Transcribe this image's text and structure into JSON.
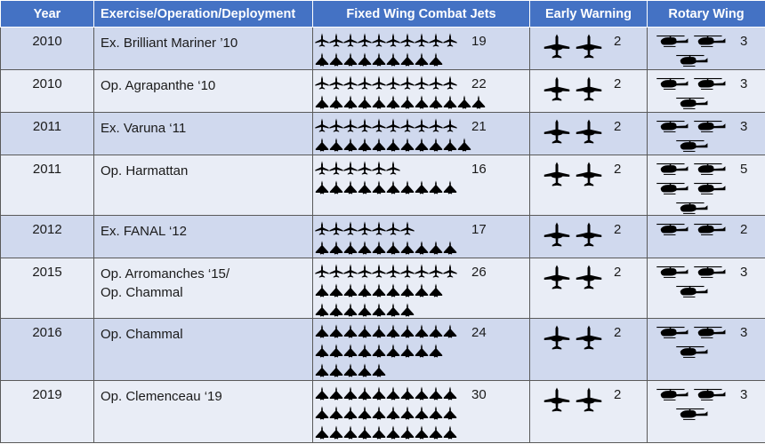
{
  "headers": {
    "year": "Year",
    "exercise": "Exercise/Operation/Deployment",
    "fixed_wing": "Fixed Wing Combat Jets",
    "early_warning": "Early Warning",
    "rotary_wing": "Rotary Wing"
  },
  "icons": {
    "fighter": "fighter-jet-icon",
    "delta": "delta-wing-jet-icon",
    "awacs": "early-warning-aircraft-icon",
    "helicopter": "helicopter-icon"
  },
  "colors": {
    "header_bg": "#4472C4",
    "row_alt": "#D0D9EE",
    "row_plain": "#E9EDF6"
  },
  "rows": [
    {
      "year": "2010",
      "exercise": [
        "Ex. Brilliant Mariner ’10"
      ],
      "fixed_wing": "19",
      "early_warning": "2",
      "rotary_wing": "3"
    },
    {
      "year": "2010",
      "exercise": [
        "Op. Agrapanthe ‘10"
      ],
      "fixed_wing": "22",
      "early_warning": "2",
      "rotary_wing": "3"
    },
    {
      "year": "2011",
      "exercise": [
        "Ex. Varuna ‘11"
      ],
      "fixed_wing": "21",
      "early_warning": "2",
      "rotary_wing": "3"
    },
    {
      "year": "2011",
      "exercise": [
        "Op. Harmattan"
      ],
      "fixed_wing": "16",
      "early_warning": "2",
      "rotary_wing": "5"
    },
    {
      "year": "2012",
      "exercise": [
        "Ex. FANAL ‘12"
      ],
      "fixed_wing": "17",
      "early_warning": "2",
      "rotary_wing": "2"
    },
    {
      "year": "2015",
      "exercise": [
        "Op. Arromanches ‘15/",
        "Op. Chammal"
      ],
      "fixed_wing": "26",
      "early_warning": "2",
      "rotary_wing": "3"
    },
    {
      "year": "2016",
      "exercise": [
        "Op. Chammal"
      ],
      "fixed_wing": "24",
      "early_warning": "2",
      "rotary_wing": "3"
    },
    {
      "year": "2019",
      "exercise": [
        "Op. Clemenceau ‘19"
      ],
      "fixed_wing": "30",
      "early_warning": "2",
      "rotary_wing": "3"
    }
  ]
}
